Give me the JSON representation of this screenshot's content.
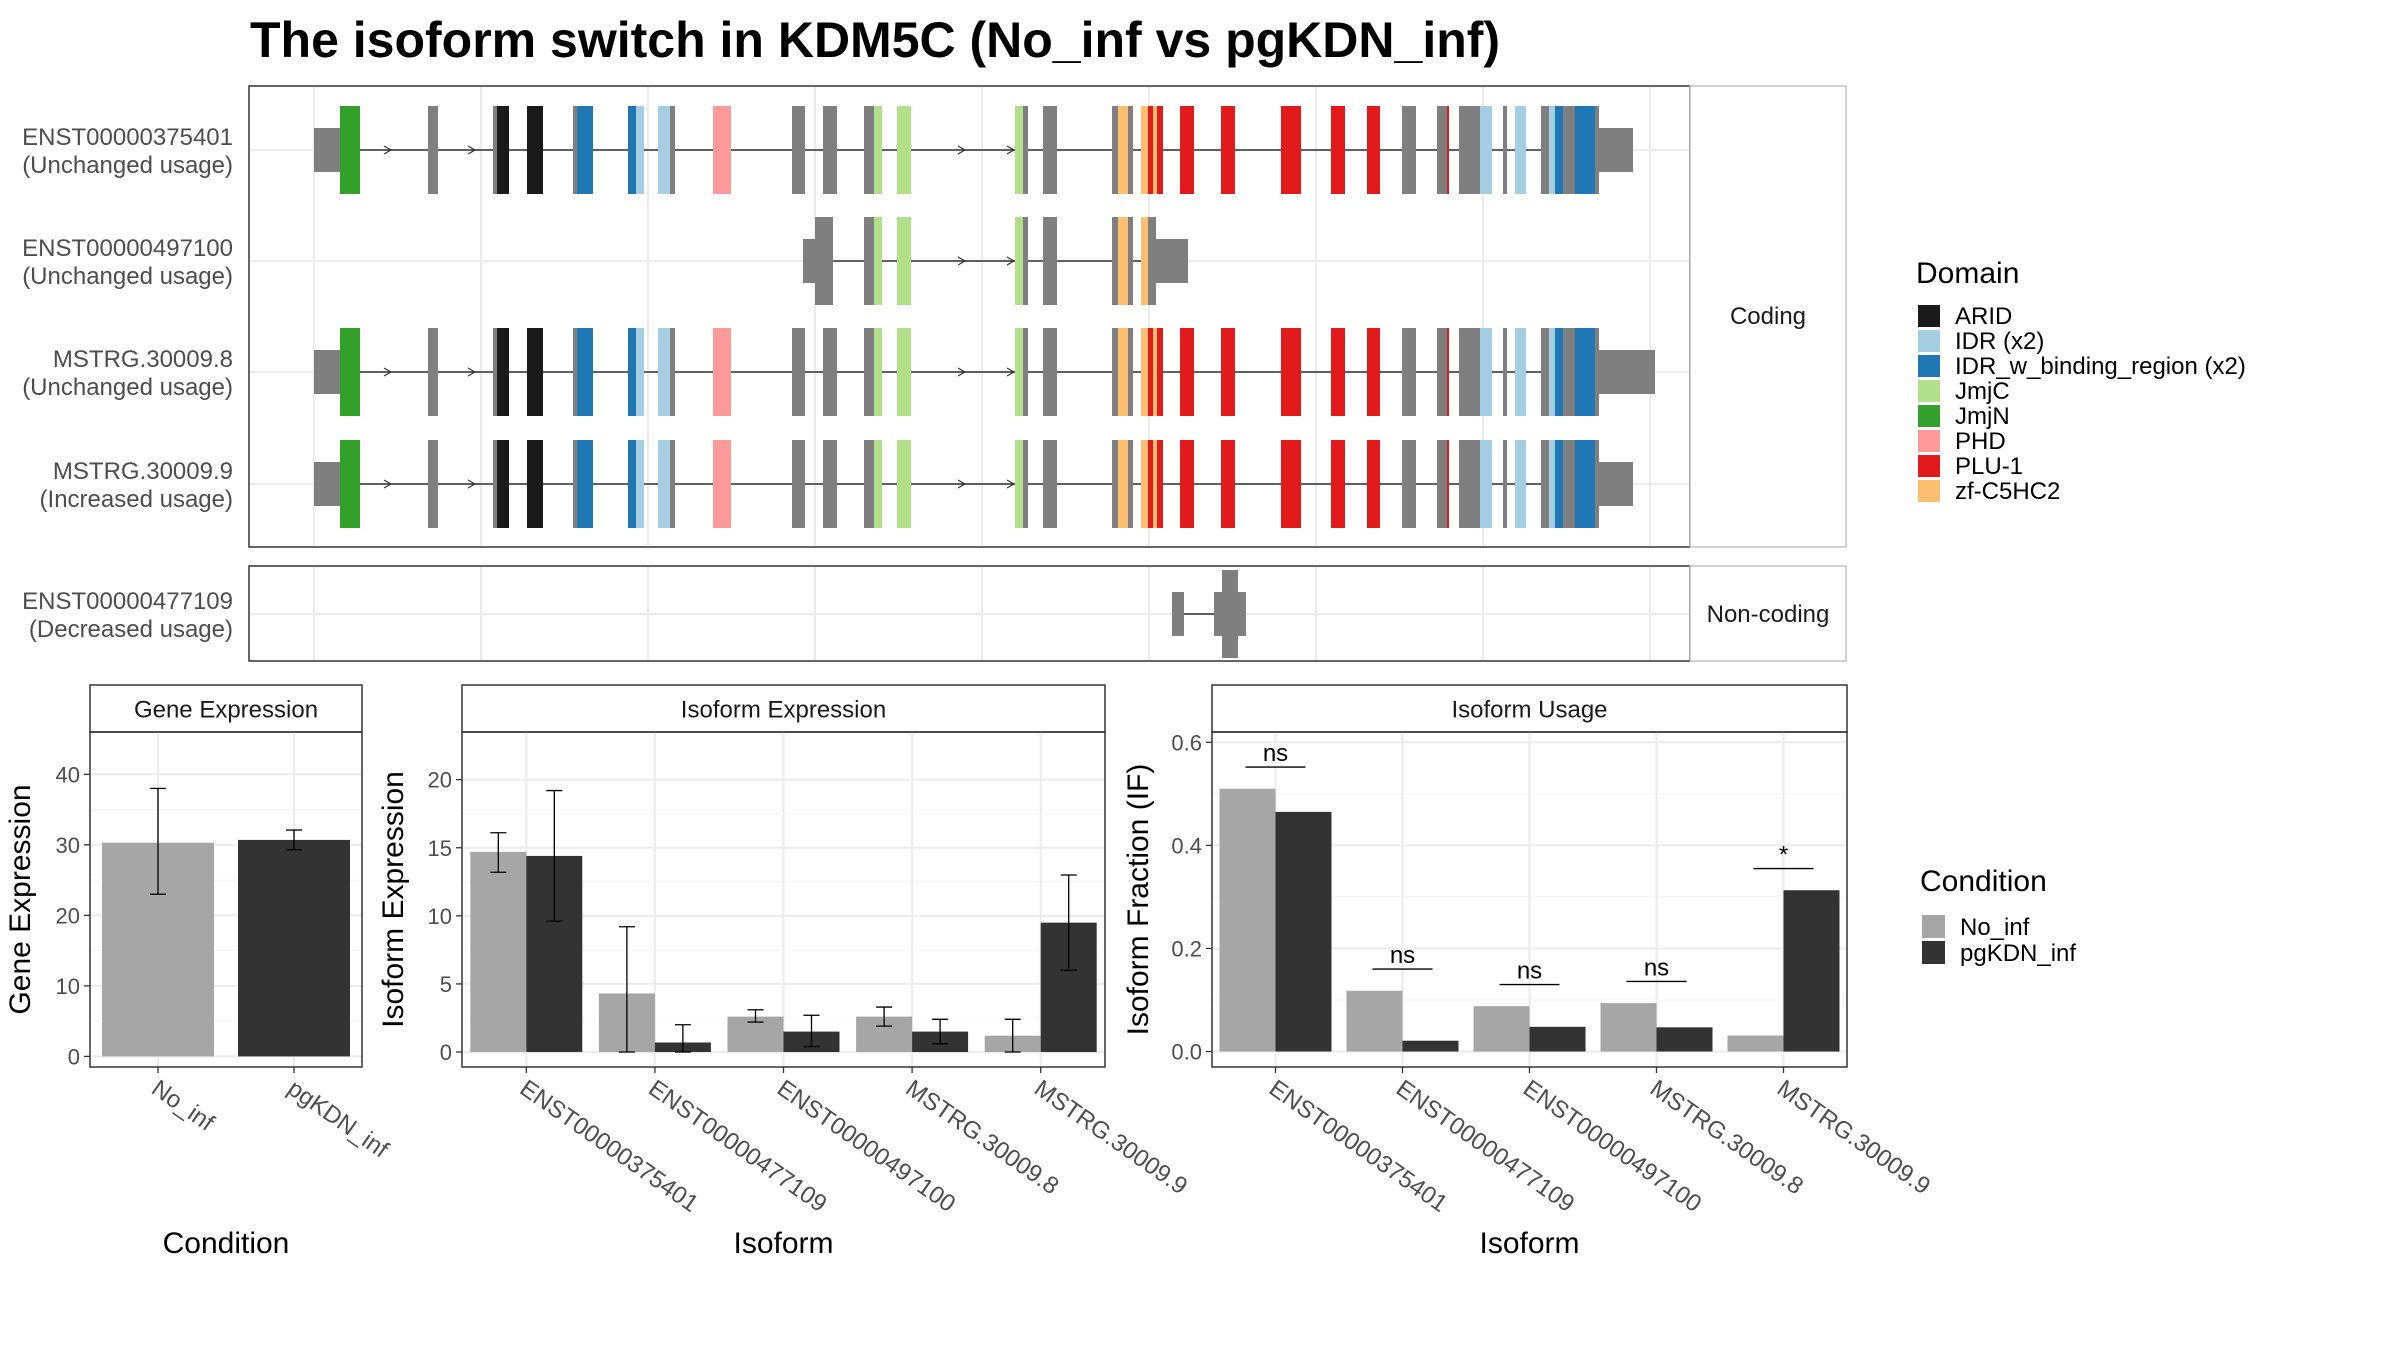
{
  "title": "The isoform switch in KDM5C (No_inf vs pgKDN_inf)",
  "colors": {
    "exon": "#7f7f7f",
    "no_inf": "#a6a6a6",
    "pgkdn_inf": "#333333",
    "grid": "#ebebeb",
    "frame": "#333333",
    "strip_bg": "#ffffff"
  },
  "domain_legend": {
    "title": "Domain",
    "items": [
      {
        "label": "ARID",
        "color": "#1a1a1a"
      },
      {
        "label": "IDR (x2)",
        "color": "#a6cee3"
      },
      {
        "label": "IDR_w_binding_region (x2)",
        "color": "#1f78b4"
      },
      {
        "label": "JmjC",
        "color": "#b2df8a"
      },
      {
        "label": "JmjN",
        "color": "#33a02c"
      },
      {
        "label": "PHD",
        "color": "#fb9a99"
      },
      {
        "label": "PLU-1",
        "color": "#e31a1c"
      },
      {
        "label": "zf-C5HC2",
        "color": "#fdbf6f"
      }
    ]
  },
  "condition_legend": {
    "title": "Condition",
    "items": [
      {
        "label": "No_inf",
        "color": "#a6a6a6"
      },
      {
        "label": "pgKDN_inf",
        "color": "#333333"
      }
    ]
  },
  "structure": {
    "coding_label": "Coding",
    "noncoding_label": "Non-coding",
    "coding": [
      {
        "id": "ENST00000375401",
        "usage": "(Unchanged usage)"
      },
      {
        "id": "ENST00000497100",
        "usage": "(Unchanged usage)"
      },
      {
        "id": "MSTRG.30009.8",
        "usage": "(Unchanged usage)"
      },
      {
        "id": "MSTRG.30009.9",
        "usage": "(Increased usage)"
      }
    ],
    "noncoding": [
      {
        "id": "ENST00000477109",
        "usage": "(Decreased usage)"
      }
    ]
  },
  "chart_data": [
    {
      "type": "bar",
      "title": "Gene Expression",
      "xlabel": "Condition",
      "ylabel": "Gene Expression",
      "categories": [
        "No_inf",
        "pgKDN_inf"
      ],
      "values": [
        30.3,
        30.7
      ],
      "errors": [
        [
          23.0,
          38.0
        ],
        [
          29.3,
          32.1
        ]
      ],
      "ylim": [
        -1.5,
        46
      ],
      "yticks": [
        0,
        10,
        20,
        30,
        40
      ]
    },
    {
      "type": "bar",
      "title": "Isoform Expression",
      "xlabel": "Isoform",
      "ylabel": "Isoform Expression",
      "categories": [
        "ENST00000375401",
        "ENST00000477109",
        "ENST00000497100",
        "MSTRG.30009.8",
        "MSTRG.30009.9"
      ],
      "series": [
        {
          "name": "No_inf",
          "values": [
            14.7,
            4.3,
            2.6,
            2.6,
            1.2
          ],
          "errors": [
            [
              13.2,
              16.1
            ],
            [
              0.0,
              9.2
            ],
            [
              2.2,
              3.1
            ],
            [
              1.9,
              3.3
            ],
            [
              0.0,
              2.4
            ]
          ]
        },
        {
          "name": "pgKDN_inf",
          "values": [
            14.4,
            0.7,
            1.5,
            1.5,
            9.5
          ],
          "errors": [
            [
              9.6,
              19.2
            ],
            [
              0.0,
              2.0
            ],
            [
              0.4,
              2.7
            ],
            [
              0.6,
              2.4
            ],
            [
              6.0,
              13.0
            ]
          ]
        }
      ],
      "ylim": [
        -1.1,
        23.5
      ],
      "yticks": [
        0,
        5,
        10,
        15,
        20
      ]
    },
    {
      "type": "bar",
      "title": "Isoform Usage",
      "xlabel": "Isoform",
      "ylabel": "Isoform Fraction (IF)",
      "categories": [
        "ENST00000375401",
        "ENST00000477109",
        "ENST00000497100",
        "MSTRG.30009.8",
        "MSTRG.30009.9"
      ],
      "series": [
        {
          "name": "No_inf",
          "values": [
            0.51,
            0.118,
            0.088,
            0.094,
            0.031
          ]
        },
        {
          "name": "pgKDN_inf",
          "values": [
            0.465,
            0.021,
            0.048,
            0.047,
            0.313
          ]
        }
      ],
      "significance": [
        "ns",
        "ns",
        "ns",
        "ns",
        "*"
      ],
      "ylim": [
        -0.03,
        0.62
      ],
      "yticks": [
        0.0,
        0.2,
        0.4,
        0.6
      ]
    }
  ]
}
